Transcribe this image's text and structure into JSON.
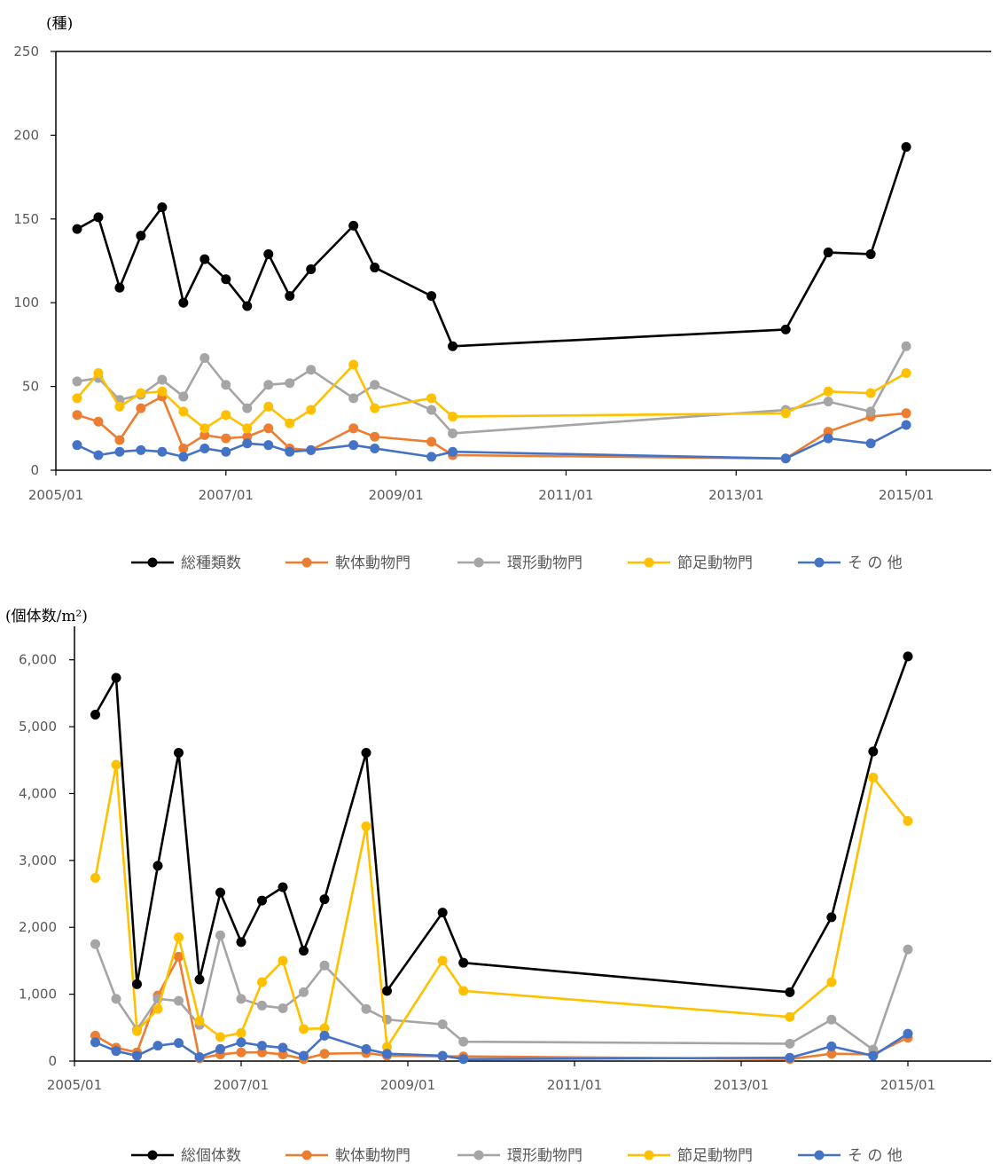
{
  "chart_data": [
    {
      "type": "line",
      "unit_label": "(種)",
      "x_ticks": [
        "2005/01",
        "2007/01",
        "2009/01",
        "2011/01",
        "2013/01",
        "2015/01"
      ],
      "xlim": [
        "2005/01",
        "2016/01"
      ],
      "ylim": [
        0,
        250
      ],
      "y_ticks": [
        "0",
        "50",
        "100",
        "150",
        "200",
        "250"
      ],
      "y_tick_values": [
        0,
        50,
        100,
        150,
        200,
        250
      ],
      "grid": false,
      "legend_position": "bottom",
      "x": [
        "2005/04",
        "2005/07",
        "2005/10",
        "2006/01",
        "2006/04",
        "2006/07",
        "2006/10",
        "2007/01",
        "2007/04",
        "2007/07",
        "2007/10",
        "2008/01",
        "2008/07",
        "2008/10",
        "2009/06",
        "2009/09",
        "2013/08",
        "2014/02",
        "2014/08",
        "2015/01"
      ],
      "series": [
        {
          "name": "総種類数",
          "color": "#000000",
          "values": [
            144,
            151,
            109,
            140,
            157,
            100,
            126,
            114,
            98,
            129,
            104,
            120,
            146,
            121,
            104,
            74,
            84,
            130,
            129,
            193
          ]
        },
        {
          "name": "軟体動物門",
          "color": "#ED7D31",
          "values": [
            33,
            29,
            18,
            37,
            44,
            13,
            21,
            19,
            20,
            25,
            13,
            12,
            25,
            20,
            17,
            9,
            7,
            23,
            32,
            34
          ]
        },
        {
          "name": "環形動物門",
          "color": "#A5A5A5",
          "values": [
            53,
            55,
            42,
            45,
            54,
            44,
            67,
            51,
            37,
            51,
            52,
            60,
            43,
            51,
            36,
            22,
            36,
            41,
            35,
            74
          ]
        },
        {
          "name": "節足動物門",
          "color": "#FFC000",
          "values": [
            43,
            58,
            38,
            46,
            47,
            35,
            25,
            33,
            25,
            38,
            28,
            36,
            63,
            37,
            43,
            32,
            34,
            47,
            46,
            58
          ]
        },
        {
          "name": "そ の 他",
          "color": "#4472C4",
          "values": [
            15,
            9,
            11,
            12,
            11,
            8,
            13,
            11,
            16,
            15,
            11,
            12,
            15,
            13,
            8,
            11,
            7,
            19,
            16,
            27
          ]
        }
      ]
    },
    {
      "type": "line",
      "unit_label": "(個体数/m²)",
      "x_ticks": [
        "2005/01",
        "2007/01",
        "2009/01",
        "2011/01",
        "2013/01",
        "2015/01"
      ],
      "xlim": [
        "2005/01",
        "2016/01"
      ],
      "ylim": [
        0,
        6500
      ],
      "y_ticks": [
        "0",
        "1,000",
        "2,000",
        "3,000",
        "4,000",
        "5,000",
        "6,000"
      ],
      "y_tick_values": [
        0,
        1000,
        2000,
        3000,
        4000,
        5000,
        6000
      ],
      "grid": false,
      "legend_position": "bottom",
      "x": [
        "2005/04",
        "2005/07",
        "2005/10",
        "2006/01",
        "2006/04",
        "2006/07",
        "2006/10",
        "2007/01",
        "2007/04",
        "2007/07",
        "2007/10",
        "2008/01",
        "2008/07",
        "2008/10",
        "2009/06",
        "2009/09",
        "2013/08",
        "2014/02",
        "2014/08",
        "2015/01"
      ],
      "series": [
        {
          "name": "総個体数",
          "color": "#000000",
          "values": [
            5180,
            5730,
            1150,
            2920,
            4610,
            1220,
            2520,
            1780,
            2400,
            2600,
            1650,
            2420,
            4610,
            1050,
            2220,
            1470,
            1030,
            2150,
            4630,
            6050
          ]
        },
        {
          "name": "軟体動物門",
          "color": "#ED7D31",
          "values": [
            380,
            200,
            130,
            980,
            1560,
            40,
            100,
            130,
            130,
            100,
            30,
            110,
            120,
            80,
            70,
            70,
            30,
            110,
            100,
            350
          ]
        },
        {
          "name": "環形動物門",
          "color": "#A5A5A5",
          "values": [
            1750,
            930,
            470,
            930,
            900,
            540,
            1880,
            930,
            830,
            790,
            1030,
            1430,
            780,
            620,
            550,
            290,
            260,
            620,
            170,
            1670
          ]
        },
        {
          "name": "節足動物門",
          "color": "#FFC000",
          "values": [
            2740,
            4430,
            450,
            780,
            1850,
            600,
            360,
            420,
            1180,
            1500,
            480,
            490,
            3510,
            210,
            1500,
            1050,
            660,
            1180,
            4240,
            3590
          ]
        },
        {
          "name": "そ の 他",
          "color": "#4472C4",
          "values": [
            280,
            150,
            80,
            230,
            270,
            60,
            180,
            280,
            230,
            200,
            80,
            380,
            180,
            110,
            80,
            30,
            50,
            220,
            80,
            410
          ]
        }
      ]
    }
  ]
}
